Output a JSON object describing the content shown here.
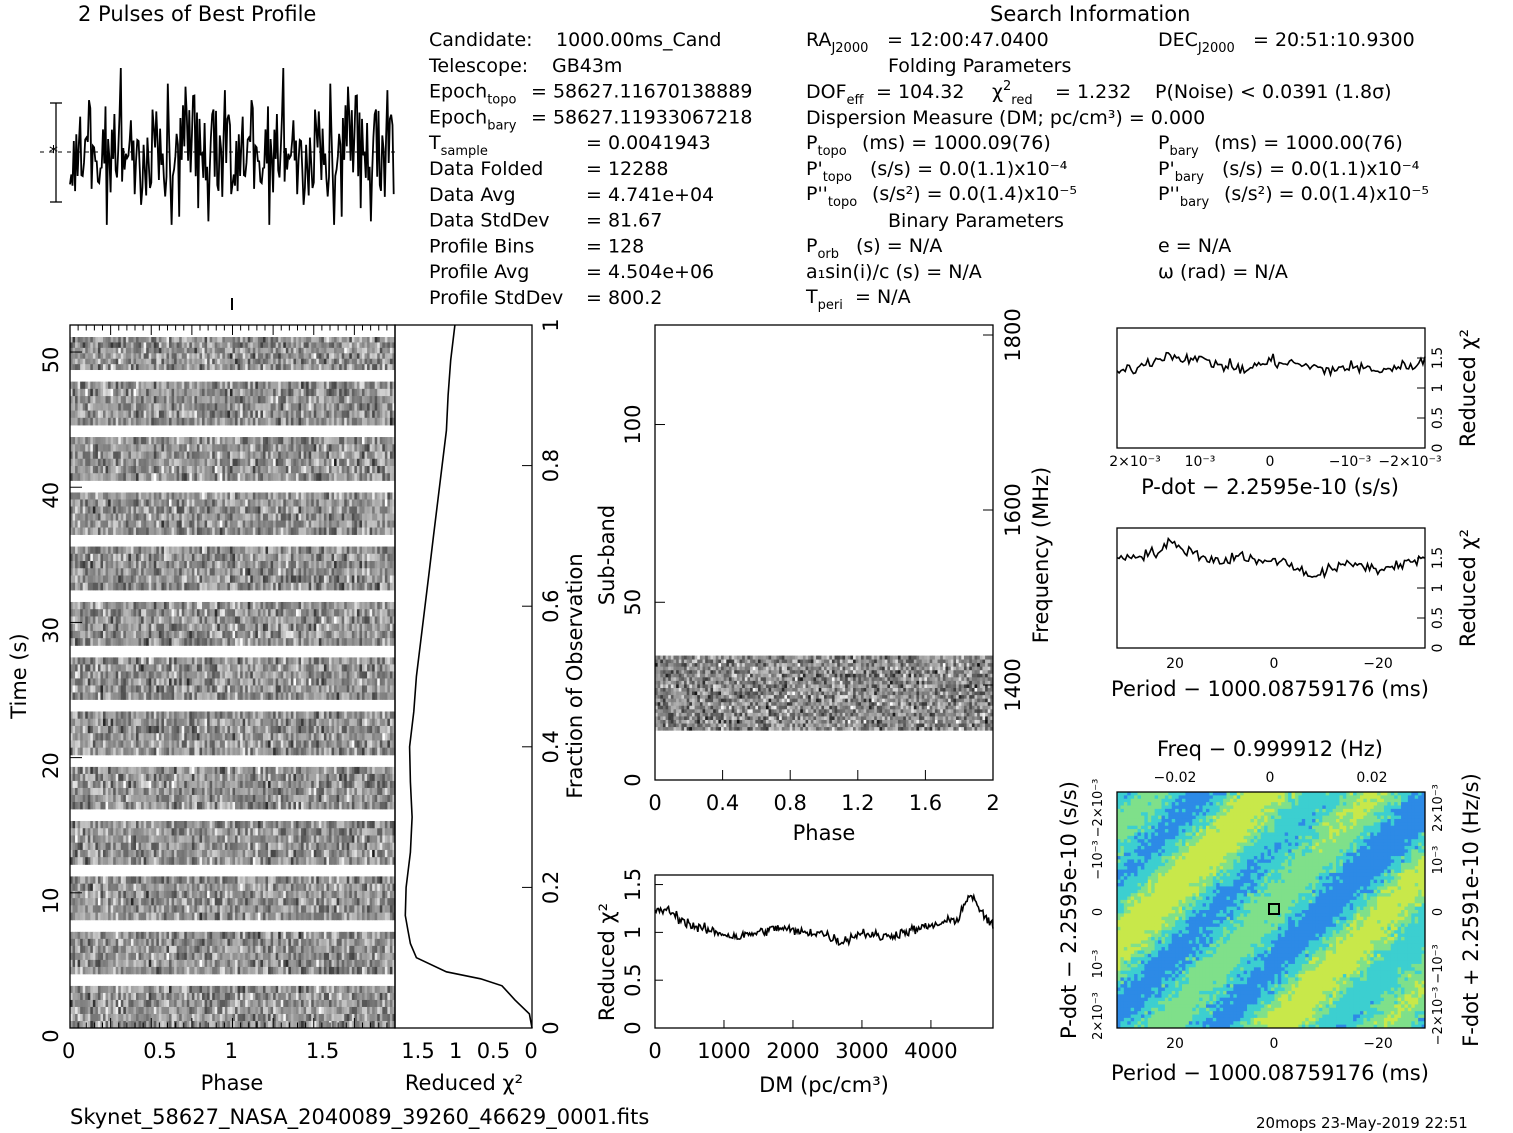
{
  "header": {
    "profile_title": "2 Pulses of Best Profile",
    "search_title": "Search Information",
    "folding_title": "Folding Parameters",
    "binary_title": "Binary Parameters"
  },
  "info": {
    "col1": [
      {
        "label": "Candidate:",
        "value": "1000.00ms_Cand"
      },
      {
        "label": "Telescope:",
        "value": "GB43m"
      },
      {
        "label": "Epoch",
        "sub": "topo",
        "value": "= 58627.11670138889"
      },
      {
        "label": "Epoch",
        "sub": "bary",
        "value": "= 58627.11933067218"
      },
      {
        "label": "T",
        "sub": "sample",
        "value": "=   0.0041943"
      },
      {
        "label": "Data Folded",
        "value": "=   12288"
      },
      {
        "label": "Data Avg",
        "value": "=   4.741e+04"
      },
      {
        "label": "Data StdDev",
        "value": "=   81.67"
      },
      {
        "label": "Profile Bins",
        "value": "=   128"
      },
      {
        "label": "Profile Avg",
        "value": "=   4.504e+06"
      },
      {
        "label": "Profile StdDev",
        "value": "=   800.2"
      }
    ],
    "ra": "= 12:00:47.0400",
    "dec": "= 20:51:10.9300",
    "dof": "= 104.32",
    "chi2": "= 1.232",
    "pnoise": "P(Noise) < 0.0391   (1.8σ)",
    "dm": "Dispersion Measure (DM; pc/cm³) = 0.000",
    "ptopo": "(ms) =   1000.09(76)",
    "pbary": "(ms) =   1000.00(76)",
    "pdtopo": "(s/s) = 0.0(1.1)x10⁻⁴",
    "pdbary": "(s/s) = 0.0(1.1)x10⁻⁴",
    "pddtopo": "(s/s²) = 0.0(1.4)x10⁻⁵",
    "pddbary": "(s/s²) = 0.0(1.4)x10⁻⁵",
    "porb": "P",
    "porb_val": "(s) = N/A",
    "e": "e = N/A",
    "a1": "a₁sin(i)/c (s) = N/A",
    "omega": "ω (rad) = N/A",
    "tperi_val": "= N/A"
  },
  "footer": {
    "filename": "Skynet_58627_NASA_2040089_39260_46629_0001.fits",
    "stamp": "20mops 23-May-2019 22:51"
  },
  "chart_data": [
    {
      "id": "profile",
      "type": "line",
      "title": "2 Pulses of Best Profile",
      "x_range": [
        0,
        2
      ],
      "phase_pulses": 2,
      "bins": 128,
      "error_bar": "left",
      "pattern": "noise"
    },
    {
      "id": "time_phase",
      "type": "heatmap",
      "xlabel": "Phase",
      "ylabel": "Time (s)",
      "xlim": [
        0,
        2
      ],
      "ylim": [
        0,
        52
      ],
      "xticks": [
        "0",
        "0.5",
        "1",
        "1.5"
      ],
      "yticks": [
        "0",
        "10",
        "20",
        "30",
        "40",
        "50"
      ],
      "gaps_s": [
        4.0,
        8.0,
        12.1,
        16.2,
        20.2,
        24.3,
        28.3,
        32.4,
        36.5,
        40.5,
        44.6,
        48.7
      ]
    },
    {
      "id": "time_chi2",
      "type": "line",
      "xlabel": "Reduced χ²",
      "ylabel_right": "Fraction of Observation",
      "xticks": [
        "1.5",
        "1",
        "0.5",
        "0"
      ],
      "yticks_right": [
        "0",
        "0.2",
        "0.4",
        "0.6",
        "0.8",
        "1"
      ],
      "x": [
        0.0,
        0.03,
        0.2,
        0.35,
        0.6,
        1.0,
        1.35,
        1.42,
        1.45,
        1.48,
        1.47,
        1.42,
        1.4,
        1.42,
        1.43,
        1.38,
        1.35,
        1.3,
        1.25,
        1.2,
        1.15,
        1.1,
        1.05,
        1.0,
        0.98,
        0.95,
        0.9
      ],
      "y": [
        0.0,
        0.02,
        0.04,
        0.06,
        0.07,
        0.08,
        0.1,
        0.12,
        0.14,
        0.16,
        0.2,
        0.25,
        0.3,
        0.35,
        0.4,
        0.45,
        0.5,
        0.55,
        0.6,
        0.65,
        0.7,
        0.75,
        0.8,
        0.85,
        0.9,
        0.95,
        1.0
      ]
    },
    {
      "id": "subband_phase",
      "type": "heatmap",
      "xlabel": "Phase",
      "ylabel": "Sub-band",
      "ylabel_right": "Frequency (MHz)",
      "xlim": [
        0,
        2
      ],
      "ylim": [
        0,
        128
      ],
      "xticks": [
        "0",
        "0.4",
        "0.8",
        "1.2",
        "1.6",
        "2"
      ],
      "yticks": [
        "0",
        "50",
        "100"
      ],
      "yticks_right": [
        "1400",
        "1600",
        "1800"
      ],
      "filled_subbands": [
        14,
        35
      ]
    },
    {
      "id": "dm_chi2",
      "type": "line",
      "xlabel": "DM (pc/cm³)",
      "ylabel": "Reduced χ²",
      "xlim": [
        0,
        4900
      ],
      "ylim": [
        0,
        1.6
      ],
      "xticks": [
        "0",
        "1000",
        "2000",
        "3000",
        "4000"
      ],
      "yticks": [
        "0",
        "0.5",
        "1",
        "1.5"
      ],
      "x": [
        0,
        150,
        350,
        600,
        900,
        1200,
        1500,
        1800,
        2100,
        2400,
        2700,
        3000,
        3300,
        3600,
        3900,
        4200,
        4400,
        4550,
        4700,
        4900
      ],
      "y": [
        1.2,
        1.25,
        1.15,
        1.05,
        1.0,
        0.95,
        1.0,
        1.05,
        1.0,
        1.0,
        0.9,
        1.0,
        0.95,
        1.0,
        1.05,
        1.1,
        1.15,
        1.4,
        1.25,
        1.05
      ]
    },
    {
      "id": "pdot_chi2",
      "type": "line",
      "xlabel": "P-dot − 2.2595e-10 (s/s)",
      "ylabel": "Reduced χ²",
      "xlim": [
        0.0029,
        -0.0029
      ],
      "ylim": [
        0,
        2.0
      ],
      "xticks": [
        "2×10⁻³",
        "10⁻³",
        "0",
        "−10⁻³",
        "−2×10⁻³"
      ],
      "yticks": [
        "0",
        "0.5",
        "1",
        "1.5"
      ],
      "x": [
        0.0029,
        0.0025,
        0.002,
        0.0015,
        0.001,
        0.0005,
        0.0,
        -0.0005,
        -0.001,
        -0.0015,
        -0.002,
        -0.0025,
        -0.0029
      ],
      "y": [
        1.25,
        1.35,
        1.55,
        1.5,
        1.4,
        1.3,
        1.45,
        1.4,
        1.3,
        1.35,
        1.3,
        1.35,
        1.45
      ]
    },
    {
      "id": "period_chi2",
      "type": "line",
      "xlabel": "Period − 1000.08759176 (ms)",
      "ylabel": "Reduced χ²",
      "xlim": [
        30,
        -29
      ],
      "ylim": [
        0,
        2.0
      ],
      "xticks": [
        "20",
        "0",
        "−20"
      ],
      "yticks": [
        "0",
        "0.5",
        "1",
        "1.5"
      ],
      "x": [
        30,
        26,
        22,
        20,
        17,
        13,
        10,
        6,
        2,
        0,
        -4,
        -8,
        -12,
        -16,
        -20,
        -24,
        -29
      ],
      "y": [
        1.5,
        1.55,
        1.6,
        1.75,
        1.65,
        1.5,
        1.45,
        1.55,
        1.4,
        1.5,
        1.35,
        1.2,
        1.35,
        1.4,
        1.3,
        1.4,
        1.5
      ]
    },
    {
      "id": "period_pdot",
      "type": "heatmap",
      "xlabel": "Period − 1000.08759176 (ms)",
      "xlabel_top": "Freq − 0.999912 (Hz)",
      "ylabel": "P-dot − 2.2595e-10 (s/s)",
      "ylabel_right": "F-dot + 2.2591e-10 (Hz/s)",
      "xticks": [
        "20",
        "0",
        "−20"
      ],
      "xticks_top": [
        "−0.02",
        "0",
        "0.02"
      ],
      "yticks": [
        "2×10⁻³",
        "10⁻³",
        "0",
        "−10⁻³",
        "−2×10⁻³"
      ],
      "yticks_right": [
        "−2×10⁻³",
        "−10⁻³",
        "0",
        "10⁻³",
        "2×10⁻³"
      ],
      "colormap": [
        "#1e3cc8",
        "#2d8ae6",
        "#3ccfd0",
        "#7fe08a",
        "#c8e84a"
      ]
    }
  ]
}
